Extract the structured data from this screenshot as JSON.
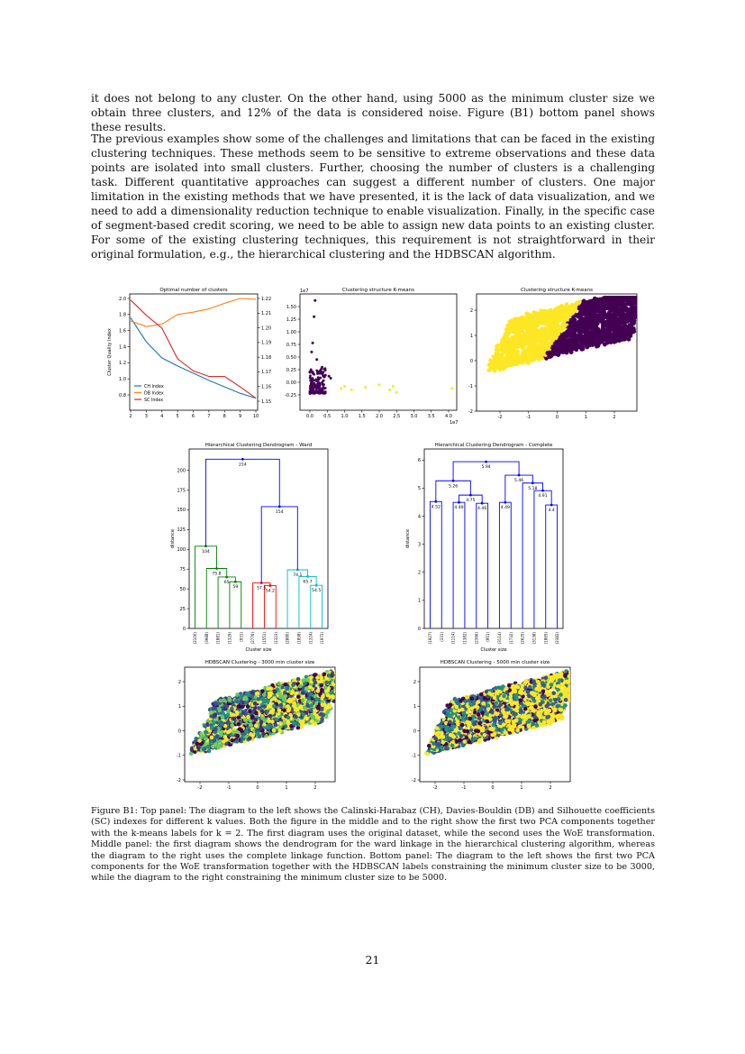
{
  "body": {
    "para1": "it does not belong to any cluster. On the other hand, using 5000 as the minimum cluster size we obtain three clusters, and 12% of the data is considered noise. Figure (B1) bottom panel shows these results.",
    "para2": "The previous examples show some of the challenges and limitations that can be faced in the existing clustering techniques. These methods seem to be sensitive to extreme observations and these data points are isolated into small clusters. Further, choosing the number of clusters is a challenging task. Different quantitative approaches can suggest a different number of clusters. One major limitation in the existing methods that we have presented, it is the lack of data visualization, and we need to add a dimensionality reduction technique to enable visualization. Finally, in the specific case of segment-based credit scoring, we need to be able to assign new data points to an existing cluster. For some of the existing clustering techniques, this requirement is not straightforward in their original formulation, e.g., the hierarchical clustering and the HDBSCAN algorithm."
  },
  "caption": "Figure B1: Top panel: The diagram to the left shows the Calinski-Harabaz (CH), Davies-Bouldin (DB) and Silhouette coefficients (SC) indexes for different k values. Both the figure in the middle and to the right show the first two PCA components together with the k-means labels for k = 2. The first diagram uses the original dataset, while the second uses the WoE transformation. Middle panel: the first diagram shows the dendrogram for the ward linkage in the hierarchical clustering algorithm, whereas the diagram to the right uses the complete linkage function. Bottom panel: The diagram to the left shows the first two PCA components for the WoE transformation together with the HDBSCAN labels constraining the minimum cluster size to be 3000, while the diagram to the right constraining the minimum cluster size to be 5000.",
  "page_number": "21",
  "colors": {
    "ch": "#1f77b4",
    "db": "#ff7f0e",
    "sc": "#d62728",
    "purple": "#440154",
    "yellow": "#fde725",
    "blue": "#0000ff",
    "green": "#008000",
    "red": "#ff0000",
    "cyan": "#00bfbf"
  },
  "chart_data": [
    {
      "type": "line",
      "title": "Optimal number of clusters",
      "ylabel": "Cluster Quality Index",
      "x": [
        2,
        3,
        4,
        5,
        6,
        7,
        8,
        9,
        10
      ],
      "xticks": [
        "2",
        "3",
        "4",
        "5",
        "6",
        "7",
        "8",
        "9",
        "10"
      ],
      "yticks_left": [
        "0.8",
        "1.0",
        "1.2",
        "1.4",
        "1.6",
        "1.8",
        "2.0"
      ],
      "yticks_right": [
        "1.15",
        "1.16",
        "1.17",
        "1.18",
        "1.19",
        "1.20",
        "1.21",
        "1.22"
      ],
      "ylim": [
        0.7,
        2.05
      ],
      "series": [
        {
          "name": "CH Index",
          "color": "#1f77b4",
          "values": [
            1.76,
            1.46,
            1.26,
            1.16,
            1.07,
            0.98,
            0.9,
            0.82,
            0.76
          ]
        },
        {
          "name": "DB Index",
          "color": "#ff7f0e",
          "values": [
            1.72,
            1.65,
            1.68,
            1.8,
            1.83,
            1.87,
            1.94,
            2.0,
            1.99
          ]
        },
        {
          "name": "SC Index",
          "color": "#d62728",
          "values": [
            1.98,
            1.79,
            1.63,
            1.25,
            1.1,
            1.03,
            1.03,
            0.9,
            0.76
          ]
        }
      ],
      "legend": "lower-left"
    },
    {
      "type": "scatter",
      "title": "Clustering structure K-means",
      "offset_text_x": "1e7",
      "offset_text_y": "1e7",
      "xticks": [
        "0.0",
        "0.5",
        "1.0",
        "1.5",
        "2.0",
        "2.5",
        "3.0",
        "3.5",
        "4.0"
      ],
      "yticks": [
        "-0.25",
        "0.00",
        "0.25",
        "0.50",
        "0.75",
        "1.00",
        "1.25",
        "1.50"
      ],
      "purple_points": [
        [
          0.15,
          1.62
        ],
        [
          0.12,
          1.3
        ],
        [
          0.08,
          0.78
        ],
        [
          0.05,
          0.6
        ],
        [
          0.45,
          0.14
        ],
        [
          0.55,
          0.12
        ],
        [
          0.6,
          0.08
        ],
        [
          0.3,
          0.2
        ],
        [
          0.35,
          0.3
        ],
        [
          0.2,
          0.45
        ]
      ],
      "yellow_points": [
        [
          1.2,
          -0.15
        ],
        [
          1.6,
          -0.1
        ],
        [
          2.0,
          -0.05
        ],
        [
          2.3,
          -0.15
        ],
        [
          2.5,
          -0.2
        ],
        [
          4.1,
          -0.12
        ],
        [
          0.9,
          -0.12
        ],
        [
          1.0,
          -0.08
        ],
        [
          2.4,
          -0.08
        ]
      ]
    },
    {
      "type": "scatter",
      "title": "Clustering structure K-means",
      "xticks": [
        "-2",
        "-1",
        "0",
        "1",
        "2"
      ],
      "yticks": [
        "-2",
        "-1",
        "0",
        "1",
        "2"
      ],
      "clusters": [
        "purple",
        "yellow"
      ]
    },
    {
      "type": "dendrogram",
      "title": "Hierarchical Clustering Dendrogram - Ward",
      "ylabel": "distance",
      "xlabel": "Cluster size",
      "yticks": [
        "0",
        "25",
        "50",
        "75",
        "100",
        "125",
        "150",
        "175",
        "200"
      ],
      "leaves": [
        "(2100)",
        "(3988)",
        "(1881)",
        "(1329)",
        "(931)",
        "(2776)",
        "(1551)",
        "(1323)",
        "(2880)",
        "(1838)",
        "(1324)",
        "(1973)"
      ],
      "merges": [
        "214",
        "154",
        "104",
        "75.8",
        "65",
        "59",
        "57.5",
        "54.2",
        "74.1",
        "65.7",
        "54.5"
      ]
    },
    {
      "type": "dendrogram",
      "title": "Hierarchical Clustering Dendrogram - Complete",
      "ylabel": "distance",
      "xlabel": "Cluster size",
      "yticks": [
        "0",
        "1",
        "2",
        "3",
        "4",
        "5",
        "6"
      ],
      "leaves": [
        "(1927)",
        "(331)",
        "(1114)",
        "(1382)",
        "(2366)",
        "(951)",
        "(3114)",
        "(1732)",
        "(2625)",
        "(3138)",
        "(1865)",
        "(2382)"
      ],
      "merges": [
        "5.94",
        "5.46",
        "5.26",
        "5.18",
        "4.75",
        "4.91",
        "4.52",
        "4.49",
        "4.46",
        "4.49",
        "4.4"
      ]
    },
    {
      "type": "scatter",
      "title": "HDBSCAN Clustering - 3000 min cluster size",
      "xticks": [
        "-2",
        "-1",
        "0",
        "1",
        "2"
      ],
      "yticks": [
        "-2",
        "-1",
        "0",
        "1",
        "2"
      ]
    },
    {
      "type": "scatter",
      "title": "HDBSCAN Clustering - 5000 min cluster size",
      "xticks": [
        "-2",
        "-1",
        "0",
        "1",
        "2"
      ],
      "yticks": [
        "-2",
        "-1",
        "0",
        "1",
        "2"
      ]
    }
  ]
}
